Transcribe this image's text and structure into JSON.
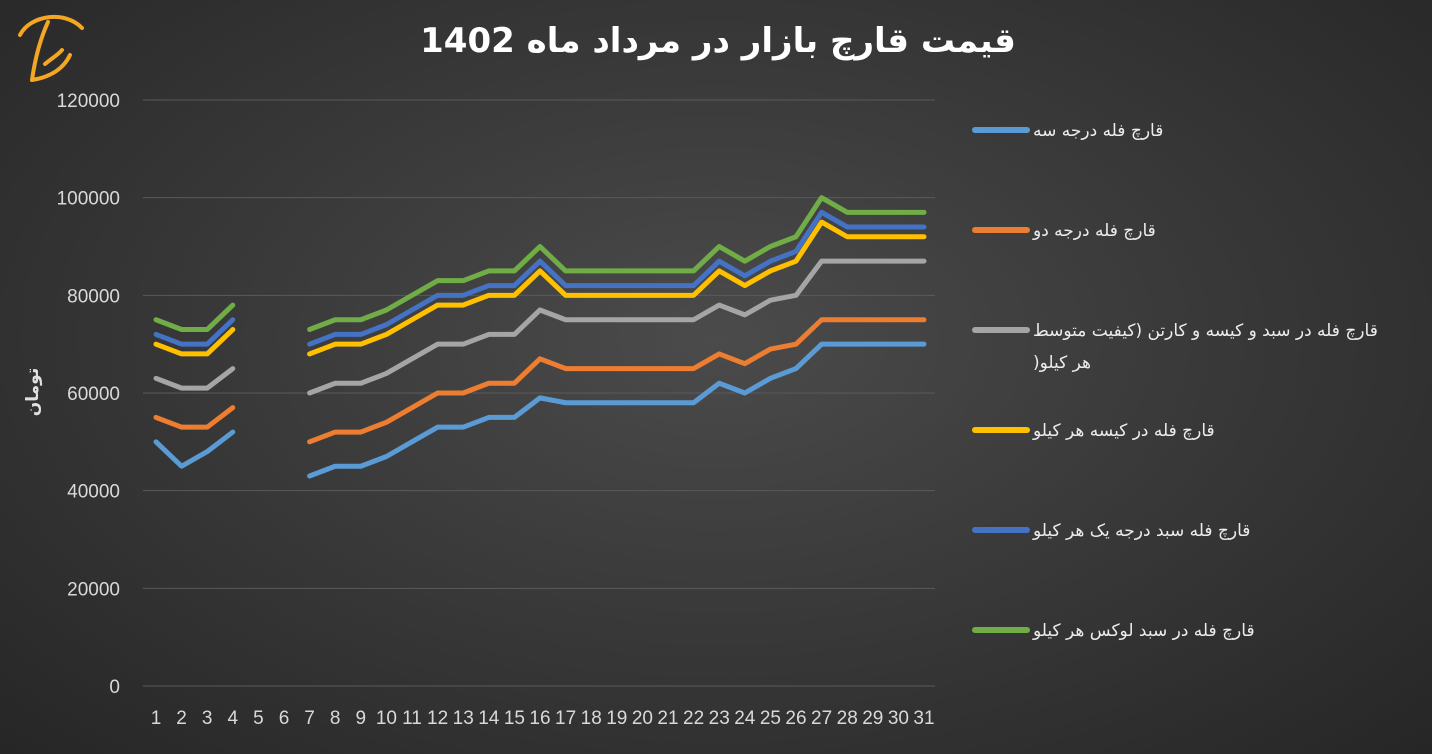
{
  "chart_data": {
    "type": "line",
    "title": "قیمت قارچ بازار در مرداد ماه 1402",
    "ylabel": "تومان",
    "xlabel": "",
    "ylim": [
      0,
      120000
    ],
    "yticks": [
      "0",
      "20000",
      "40000",
      "60000",
      "80000",
      "100000",
      "120000"
    ],
    "x": [
      1,
      2,
      3,
      4,
      5,
      6,
      7,
      8,
      9,
      10,
      11,
      12,
      13,
      14,
      15,
      16,
      17,
      18,
      19,
      20,
      21,
      22,
      23,
      24,
      25,
      26,
      27,
      28,
      29,
      30,
      31
    ],
    "grid": true,
    "legend_position": "right",
    "series": [
      {
        "name": "قارچ فله درجه سه",
        "color": "#5b9bd5",
        "values": [
          50000,
          45000,
          48000,
          52000,
          null,
          null,
          43000,
          45000,
          45000,
          47000,
          50000,
          53000,
          53000,
          55000,
          55000,
          59000,
          58000,
          58000,
          58000,
          58000,
          58000,
          58000,
          62000,
          60000,
          63000,
          65000,
          70000,
          70000,
          70000,
          70000,
          70000
        ]
      },
      {
        "name": "قارچ فله درجه دو",
        "color": "#ed7d31",
        "values": [
          55000,
          53000,
          53000,
          57000,
          null,
          null,
          50000,
          52000,
          52000,
          54000,
          57000,
          60000,
          60000,
          62000,
          62000,
          67000,
          65000,
          65000,
          65000,
          65000,
          65000,
          65000,
          68000,
          66000,
          69000,
          70000,
          75000,
          75000,
          75000,
          75000,
          75000
        ]
      },
      {
        "name": "قارچ فله در سبد و کیسه و کارتن (کیفیت متوسط) هر کیلو",
        "legend_lines": [
          "قارچ فله در سبد و کیسه و کارتن (کیفیت متوسط",
          ")هر کیلو"
        ],
        "color": "#a5a5a5",
        "values": [
          63000,
          61000,
          61000,
          65000,
          null,
          null,
          60000,
          62000,
          62000,
          64000,
          67000,
          70000,
          70000,
          72000,
          72000,
          77000,
          75000,
          75000,
          75000,
          75000,
          75000,
          75000,
          78000,
          76000,
          79000,
          80000,
          87000,
          87000,
          87000,
          87000,
          87000
        ]
      },
      {
        "name": "قارچ فله در کیسه هر کیلو",
        "color": "#ffc000",
        "values": [
          70000,
          68000,
          68000,
          73000,
          null,
          null,
          68000,
          70000,
          70000,
          72000,
          75000,
          78000,
          78000,
          80000,
          80000,
          85000,
          80000,
          80000,
          80000,
          80000,
          80000,
          80000,
          85000,
          82000,
          85000,
          87000,
          95000,
          92000,
          92000,
          92000,
          92000
        ]
      },
      {
        "name": "قارچ فله سبد درجه یک هر کیلو",
        "color": "#4472c4",
        "values": [
          72000,
          70000,
          70000,
          75000,
          null,
          null,
          70000,
          72000,
          72000,
          74000,
          77000,
          80000,
          80000,
          82000,
          82000,
          87000,
          82000,
          82000,
          82000,
          82000,
          82000,
          82000,
          87000,
          84000,
          87000,
          89000,
          97000,
          94000,
          94000,
          94000,
          94000
        ]
      },
      {
        "name": "قارچ فله در سبد لوکس هر کیلو",
        "color": "#70ad47",
        "values": [
          75000,
          73000,
          73000,
          78000,
          null,
          null,
          73000,
          75000,
          75000,
          77000,
          80000,
          83000,
          83000,
          85000,
          85000,
          90000,
          85000,
          85000,
          85000,
          85000,
          85000,
          85000,
          90000,
          87000,
          90000,
          92000,
          100000,
          97000,
          97000,
          97000,
          97000
        ]
      }
    ]
  },
  "logo": {
    "name": "mushroom-logo",
    "color": "#f5a623"
  }
}
